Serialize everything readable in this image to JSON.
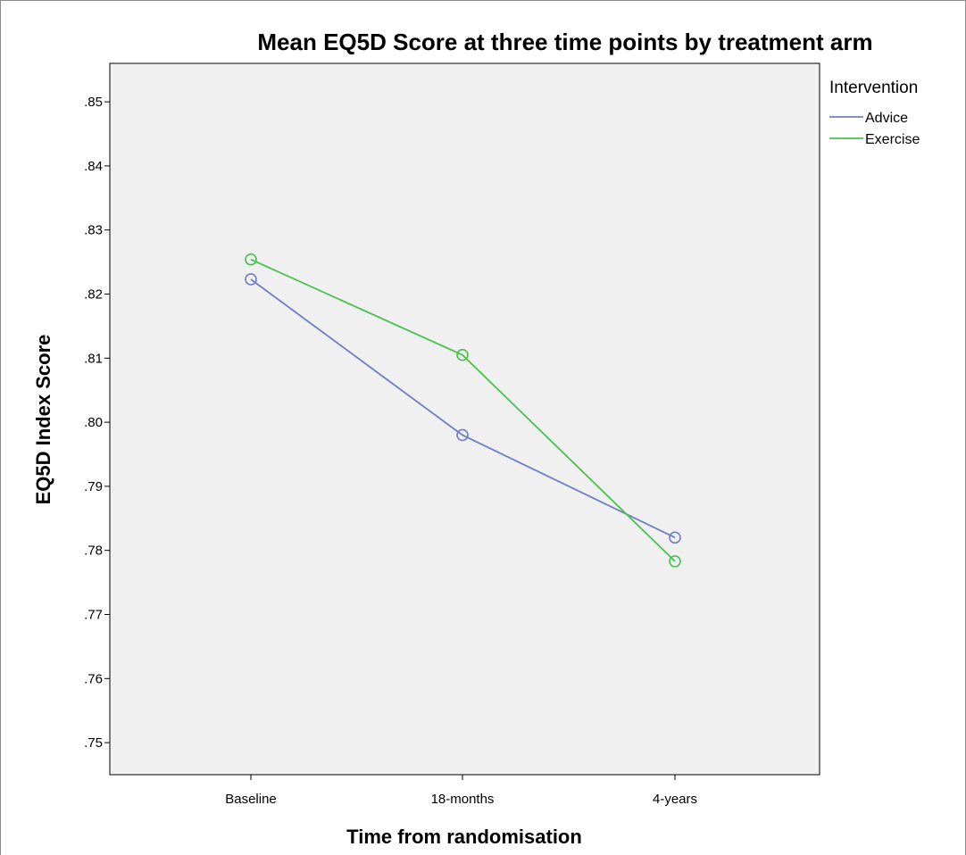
{
  "chart_data": {
    "type": "line",
    "title": "Mean EQ5D Score at three time points by treatment arm",
    "xlabel": "Time from randomisation",
    "ylabel": "EQ5D Index Score",
    "categories": [
      "Baseline",
      "18-months",
      "4-years"
    ],
    "ylim": [
      0.745,
      0.856
    ],
    "yticks": [
      0.75,
      0.76,
      0.77,
      0.78,
      0.79,
      0.8,
      0.81,
      0.82,
      0.83,
      0.84,
      0.85
    ],
    "ytick_labels": [
      ".75",
      ".76",
      ".77",
      ".78",
      ".79",
      ".80",
      ".81",
      ".82",
      ".83",
      ".84",
      ".85"
    ],
    "grid": false,
    "legend": {
      "title": "Intervention",
      "position": "right"
    },
    "series": [
      {
        "name": "Advice",
        "values": [
          0.8223,
          0.798,
          0.782
        ],
        "color": "#6f7fc6"
      },
      {
        "name": "Exercise",
        "values": [
          0.8254,
          0.8105,
          0.7783
        ],
        "color": "#47c24c"
      }
    ],
    "plot_background": "#f0f0f0"
  }
}
